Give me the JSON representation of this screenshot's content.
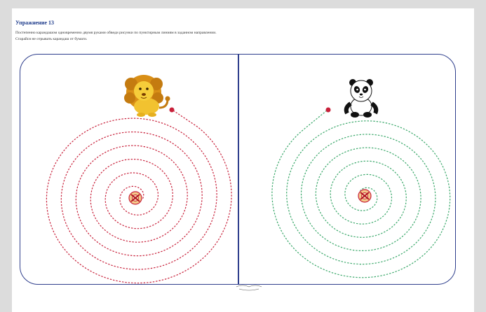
{
  "exercise_title": "Упражнение 13",
  "instruction_line1": "Постепенно карандашом одновременно двумя руками обведи рисунки по пунктирным линиям в заданном направлении.",
  "instruction_line2": "Старайся не отрывать карандаш от бумаги.",
  "left_panel": {
    "animal": "lion-icon",
    "spiral_color": "#c8203a"
  },
  "right_panel": {
    "animal": "panda-icon",
    "spiral_color": "#3aa86a"
  },
  "center_icon": "target-icon",
  "frame_color": "#2e3e8c"
}
